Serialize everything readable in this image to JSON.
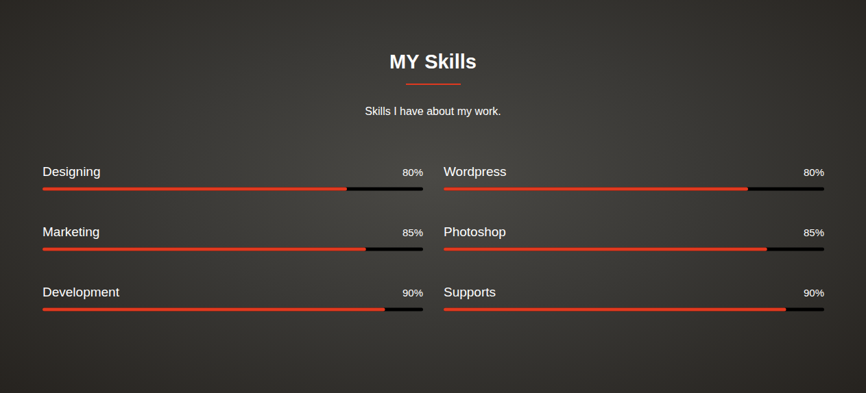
{
  "chart_data": {
    "type": "bar",
    "orientation": "horizontal",
    "title": "MY Skills",
    "subtitle": "Skills I have about my work.",
    "categories": [
      "Designing",
      "Marketing",
      "Development",
      "Wordpress",
      "Photoshop",
      "Supports"
    ],
    "values": [
      80,
      85,
      90,
      80,
      85,
      90
    ],
    "value_labels": [
      "80%",
      "85%",
      "90%",
      "80%",
      "85%",
      "90%"
    ],
    "xlim": [
      0,
      100
    ],
    "color": "#e0391f",
    "tick_labels": false,
    "data_labels": true
  }
}
